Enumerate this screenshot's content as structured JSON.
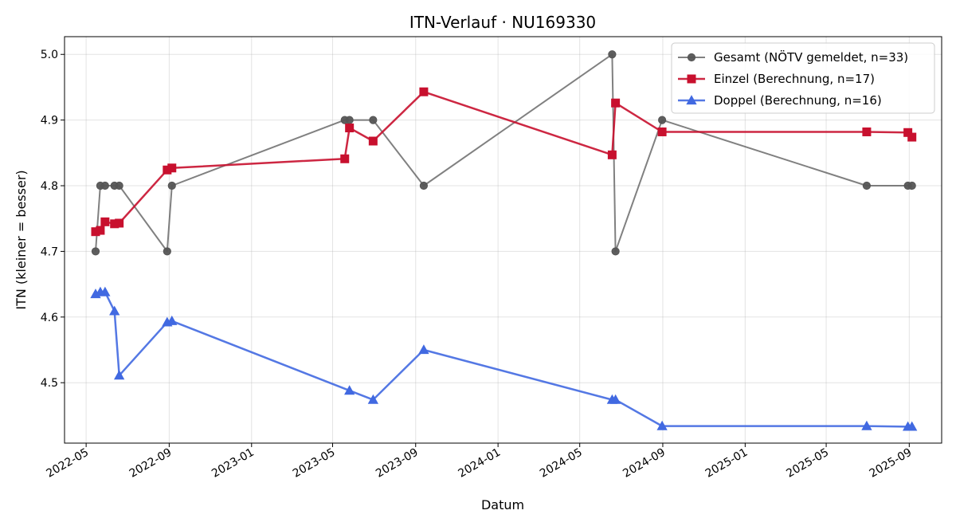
{
  "chart_data": {
    "type": "line",
    "title": "ITN-Verlauf · NU169330",
    "xlabel": "Datum",
    "ylabel": "ITN  (kleiner = besser)",
    "x_axis_type": "date",
    "xlim": [
      "2022-03-30",
      "2025-10-19"
    ],
    "ylim": [
      4.408,
      5.027
    ],
    "grid": true,
    "legend_position": "top-right",
    "x_ticks": [
      {
        "date": "2022-05-01",
        "label": "2022-05"
      },
      {
        "date": "2022-09-01",
        "label": "2022-09"
      },
      {
        "date": "2023-01-01",
        "label": "2023-01"
      },
      {
        "date": "2023-05-01",
        "label": "2023-05"
      },
      {
        "date": "2023-09-01",
        "label": "2023-09"
      },
      {
        "date": "2024-01-01",
        "label": "2024-01"
      },
      {
        "date": "2024-05-01",
        "label": "2024-05"
      },
      {
        "date": "2024-09-01",
        "label": "2024-09"
      },
      {
        "date": "2025-01-01",
        "label": "2025-01"
      },
      {
        "date": "2025-05-01",
        "label": "2025-05"
      },
      {
        "date": "2025-09-01",
        "label": "2025-09"
      }
    ],
    "y_ticks": [
      {
        "value": 4.5,
        "label": "4.5"
      },
      {
        "value": 4.6,
        "label": "4.6"
      },
      {
        "value": 4.7,
        "label": "4.7"
      },
      {
        "value": 4.8,
        "label": "4.8"
      },
      {
        "value": 4.9,
        "label": "4.9"
      },
      {
        "value": 5.0,
        "label": "5.0"
      }
    ],
    "series": [
      {
        "name": "Gesamt (NÖTV gemeldet, n=33)",
        "color": "#555555",
        "marker": "circle",
        "points": [
          {
            "x": "2022-05-15",
            "y": 4.7
          },
          {
            "x": "2022-05-22",
            "y": 4.8
          },
          {
            "x": "2022-05-29",
            "y": 4.8
          },
          {
            "x": "2022-06-12",
            "y": 4.8
          },
          {
            "x": "2022-06-19",
            "y": 4.8
          },
          {
            "x": "2022-08-29",
            "y": 4.7
          },
          {
            "x": "2022-09-05",
            "y": 4.8
          },
          {
            "x": "2023-05-19",
            "y": 4.9
          },
          {
            "x": "2023-05-26",
            "y": 4.9
          },
          {
            "x": "2023-06-30",
            "y": 4.9
          },
          {
            "x": "2023-09-13",
            "y": 4.8
          },
          {
            "x": "2024-06-18",
            "y": 5.0
          },
          {
            "x": "2024-06-23",
            "y": 4.7
          },
          {
            "x": "2024-08-31",
            "y": 4.9
          },
          {
            "x": "2025-06-30",
            "y": 4.8
          },
          {
            "x": "2025-08-30",
            "y": 4.8
          },
          {
            "x": "2025-09-05",
            "y": 4.8
          }
        ]
      },
      {
        "name": "Einzel (Berechnung, n=17)",
        "color": "#c8102e",
        "marker": "square",
        "points": [
          {
            "x": "2022-05-15",
            "y": 4.73
          },
          {
            "x": "2022-05-22",
            "y": 4.732
          },
          {
            "x": "2022-05-29",
            "y": 4.745
          },
          {
            "x": "2022-06-12",
            "y": 4.742
          },
          {
            "x": "2022-06-19",
            "y": 4.743
          },
          {
            "x": "2022-08-29",
            "y": 4.824
          },
          {
            "x": "2022-09-05",
            "y": 4.827
          },
          {
            "x": "2023-05-19",
            "y": 4.841
          },
          {
            "x": "2023-05-26",
            "y": 4.888
          },
          {
            "x": "2023-06-30",
            "y": 4.868
          },
          {
            "x": "2023-09-13",
            "y": 4.943
          },
          {
            "x": "2024-06-18",
            "y": 4.847
          },
          {
            "x": "2024-06-23",
            "y": 4.926
          },
          {
            "x": "2024-08-31",
            "y": 4.882
          },
          {
            "x": "2025-06-30",
            "y": 4.882
          },
          {
            "x": "2025-08-30",
            "y": 4.881
          },
          {
            "x": "2025-09-05",
            "y": 4.874
          }
        ]
      },
      {
        "name": "Doppel (Berechnung, n=16)",
        "color": "#4169e1",
        "marker": "triangle",
        "points": [
          {
            "x": "2022-05-15",
            "y": 4.635
          },
          {
            "x": "2022-05-22",
            "y": 4.638
          },
          {
            "x": "2022-05-29",
            "y": 4.638
          },
          {
            "x": "2022-06-12",
            "y": 4.609
          },
          {
            "x": "2022-06-19",
            "y": 4.511
          },
          {
            "x": "2022-08-29",
            "y": 4.592
          },
          {
            "x": "2022-09-05",
            "y": 4.594
          },
          {
            "x": "2023-05-26",
            "y": 4.488
          },
          {
            "x": "2023-06-30",
            "y": 4.474
          },
          {
            "x": "2023-09-13",
            "y": 4.55
          },
          {
            "x": "2024-06-18",
            "y": 4.474
          },
          {
            "x": "2024-06-23",
            "y": 4.474
          },
          {
            "x": "2024-08-31",
            "y": 4.434
          },
          {
            "x": "2025-06-30",
            "y": 4.434
          },
          {
            "x": "2025-08-30",
            "y": 4.433
          },
          {
            "x": "2025-09-05",
            "y": 4.433
          }
        ]
      }
    ]
  }
}
